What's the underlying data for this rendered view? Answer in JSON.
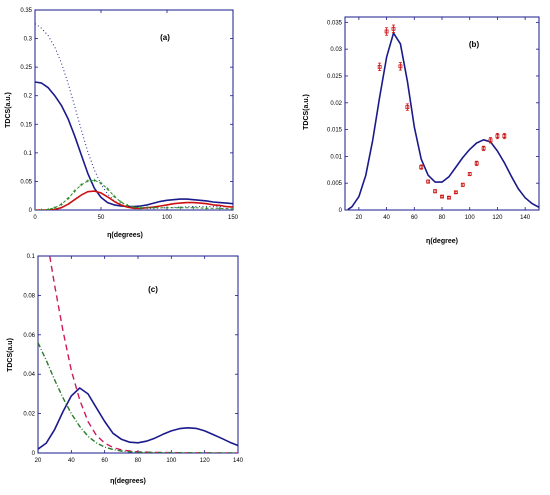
{
  "chart_data": [
    {
      "panel": "(a)",
      "type": "line",
      "xlabel": "η(degrees)",
      "ylabel": "TDCS(a.u.)",
      "xlim": [
        0,
        150
      ],
      "ylim": [
        0,
        0.35
      ],
      "xticks": [
        0,
        50,
        100,
        150
      ],
      "xtick_labels": [
        "0",
        "50",
        "100",
        "150"
      ],
      "yticks": [
        0,
        0.05,
        0.1,
        0.15,
        0.2,
        0.25,
        0.3,
        0.35
      ],
      "ytick_labels": [
        "0",
        "0.05",
        "0.1",
        "0.15",
        "0.2",
        "0.25",
        "0.3",
        "0.35"
      ],
      "series": [
        {
          "style": "solid",
          "color": "#1a1a8c",
          "x": [
            0,
            5,
            10,
            15,
            20,
            25,
            30,
            35,
            40,
            45,
            50,
            55,
            60,
            65,
            70,
            75,
            80,
            85,
            90,
            95,
            100,
            105,
            110,
            115,
            120,
            125,
            130,
            135,
            140,
            145,
            150
          ],
          "y": [
            0.224,
            0.222,
            0.214,
            0.2,
            0.183,
            0.16,
            0.13,
            0.097,
            0.064,
            0.038,
            0.022,
            0.013,
            0.009,
            0.007,
            0.006,
            0.006,
            0.007,
            0.009,
            0.012,
            0.015,
            0.017,
            0.018,
            0.019,
            0.019,
            0.018,
            0.017,
            0.016,
            0.014,
            0.013,
            0.012,
            0.011
          ]
        },
        {
          "style": "dotted",
          "color": "#1a1a8c",
          "x": [
            0,
            5,
            10,
            15,
            20,
            25,
            30,
            35,
            40,
            45,
            50,
            55,
            60,
            65,
            70,
            75,
            80,
            85,
            90,
            100,
            110,
            120,
            130,
            140,
            150
          ],
          "y": [
            0.326,
            0.318,
            0.305,
            0.285,
            0.257,
            0.222,
            0.182,
            0.141,
            0.102,
            0.07,
            0.045,
            0.028,
            0.016,
            0.01,
            0.006,
            0.004,
            0.003,
            0.003,
            0.003,
            0.004,
            0.005,
            0.006,
            0.006,
            0.006,
            0.005
          ]
        },
        {
          "style": "solid",
          "color": "#cc1111",
          "x": [
            0,
            10,
            15,
            20,
            25,
            30,
            35,
            40,
            45,
            50,
            55,
            60,
            65,
            70,
            75,
            80,
            85,
            90,
            95,
            100,
            105,
            110,
            115,
            120,
            125,
            130,
            135,
            140,
            145,
            150
          ],
          "y": [
            0,
            0.0,
            0.001,
            0.004,
            0.01,
            0.018,
            0.026,
            0.032,
            0.033,
            0.03,
            0.023,
            0.015,
            0.009,
            0.005,
            0.003,
            0.003,
            0.004,
            0.005,
            0.007,
            0.009,
            0.011,
            0.012,
            0.013,
            0.013,
            0.012,
            0.011,
            0.009,
            0.008,
            0.006,
            0.005
          ]
        },
        {
          "style": "dash-marker",
          "color": "#2a8a2a",
          "x": [
            0,
            5,
            10,
            15,
            20,
            25,
            30,
            35,
            40,
            45,
            50,
            55,
            60,
            65,
            70,
            75,
            80,
            85,
            90,
            100,
            110,
            120,
            130,
            140,
            150
          ],
          "y": [
            0.0,
            0.0,
            0.001,
            0.004,
            0.01,
            0.02,
            0.033,
            0.044,
            0.051,
            0.052,
            0.047,
            0.037,
            0.024,
            0.014,
            0.008,
            0.005,
            0.004,
            0.004,
            0.004,
            0.004,
            0.004,
            0.004,
            0.003,
            0.003,
            0.002
          ]
        }
      ]
    },
    {
      "panel": "(b)",
      "type": "line",
      "xlabel": "η(degree)",
      "ylabel": "TDCS(a.u.)",
      "xlim": [
        10,
        150
      ],
      "ylim": [
        0,
        0.036
      ],
      "xticks": [
        20,
        40,
        60,
        80,
        100,
        120,
        140
      ],
      "xtick_labels": [
        "20",
        "40",
        "60",
        "80",
        "100",
        "120",
        "140"
      ],
      "yticks": [
        0,
        0.005,
        0.01,
        0.015,
        0.02,
        0.025,
        0.03,
        0.035
      ],
      "ytick_labels": [
        "0",
        "0.005",
        "0.01",
        "0.015",
        "0.02",
        "0.025",
        "0.03",
        "0.035"
      ],
      "series": [
        {
          "style": "solid",
          "color": "#1a1a8c",
          "x": [
            12,
            15,
            20,
            25,
            30,
            35,
            40,
            45,
            50,
            55,
            60,
            65,
            70,
            75,
            80,
            85,
            90,
            95,
            100,
            105,
            110,
            115,
            120,
            125,
            130,
            135,
            140,
            145,
            150
          ],
          "y": [
            0.0001,
            0.0006,
            0.0025,
            0.0065,
            0.013,
            0.021,
            0.0285,
            0.033,
            0.031,
            0.024,
            0.0155,
            0.0095,
            0.0065,
            0.0052,
            0.0052,
            0.0062,
            0.008,
            0.0098,
            0.0113,
            0.0125,
            0.0131,
            0.0127,
            0.011,
            0.0088,
            0.0063,
            0.004,
            0.0023,
            0.0012,
            0.0005
          ]
        },
        {
          "style": "markers-errorbars",
          "color": "#cc1111",
          "x": [
            35,
            40,
            45,
            50,
            55,
            65,
            70,
            75,
            80,
            85,
            90,
            95,
            100,
            105,
            110,
            115,
            120,
            125
          ],
          "y": [
            0.0267,
            0.0333,
            0.0338,
            0.0268,
            0.0192,
            0.008,
            0.0053,
            0.0035,
            0.0025,
            0.0023,
            0.0033,
            0.0047,
            0.0067,
            0.0087,
            0.0115,
            0.013,
            0.0138,
            0.0138
          ],
          "err": [
            0.0007,
            0.0007,
            0.0007,
            0.0007,
            0.0006,
            0.0004,
            0.0003,
            0.0003,
            0.0002,
            0.0002,
            0.0002,
            0.0003,
            0.0003,
            0.0004,
            0.0004,
            0.0005,
            0.0005,
            0.0005
          ]
        }
      ]
    },
    {
      "panel": "(c)",
      "type": "line",
      "xlabel": "η(degrees)",
      "ylabel": "TDCS(a.u)",
      "xlim": [
        20,
        140
      ],
      "ylim": [
        0,
        0.1
      ],
      "xticks": [
        20,
        40,
        60,
        80,
        100,
        120,
        140
      ],
      "xtick_labels": [
        "20",
        "40",
        "60",
        "80",
        "100",
        "120",
        "140"
      ],
      "yticks": [
        0,
        0.02,
        0.04,
        0.06,
        0.08,
        0.1
      ],
      "ytick_labels": [
        "0",
        "0.02",
        "0.04",
        "0.06",
        "0.08",
        "0.1"
      ],
      "series": [
        {
          "style": "solid",
          "color": "#1a1a8c",
          "x": [
            20,
            25,
            30,
            35,
            40,
            45,
            50,
            55,
            60,
            65,
            70,
            75,
            80,
            85,
            90,
            95,
            100,
            105,
            110,
            115,
            120,
            125,
            130,
            135,
            140
          ],
          "y": [
            0.002,
            0.005,
            0.012,
            0.021,
            0.029,
            0.033,
            0.03,
            0.023,
            0.016,
            0.01,
            0.007,
            0.0055,
            0.0052,
            0.006,
            0.0075,
            0.0095,
            0.0112,
            0.0124,
            0.0128,
            0.0125,
            0.0112,
            0.0094,
            0.0075,
            0.0055,
            0.0038
          ]
        },
        {
          "style": "dashed",
          "color": "#cc1a5a",
          "x": [
            27,
            30,
            35,
            40,
            45,
            50,
            55,
            60,
            65,
            70,
            75,
            80,
            90,
            100,
            110,
            120,
            130,
            140
          ],
          "y": [
            0.1,
            0.085,
            0.062,
            0.042,
            0.027,
            0.016,
            0.009,
            0.005,
            0.0028,
            0.0016,
            0.001,
            0.0006,
            0.0003,
            0.0002,
            0.0001,
            0.0001,
            0.0,
            0.0
          ]
        },
        {
          "style": "dash-dot",
          "color": "#2a7a2a",
          "x": [
            20,
            25,
            30,
            35,
            40,
            45,
            50,
            55,
            60,
            65,
            70,
            75,
            80,
            90,
            100,
            110,
            120,
            130,
            140
          ],
          "y": [
            0.056,
            0.047,
            0.037,
            0.028,
            0.02,
            0.0135,
            0.0085,
            0.0052,
            0.003,
            0.0018,
            0.001,
            0.0006,
            0.0004,
            0.0002,
            0.0001,
            0.0001,
            0.0,
            0.0,
            0.0
          ]
        }
      ]
    }
  ]
}
